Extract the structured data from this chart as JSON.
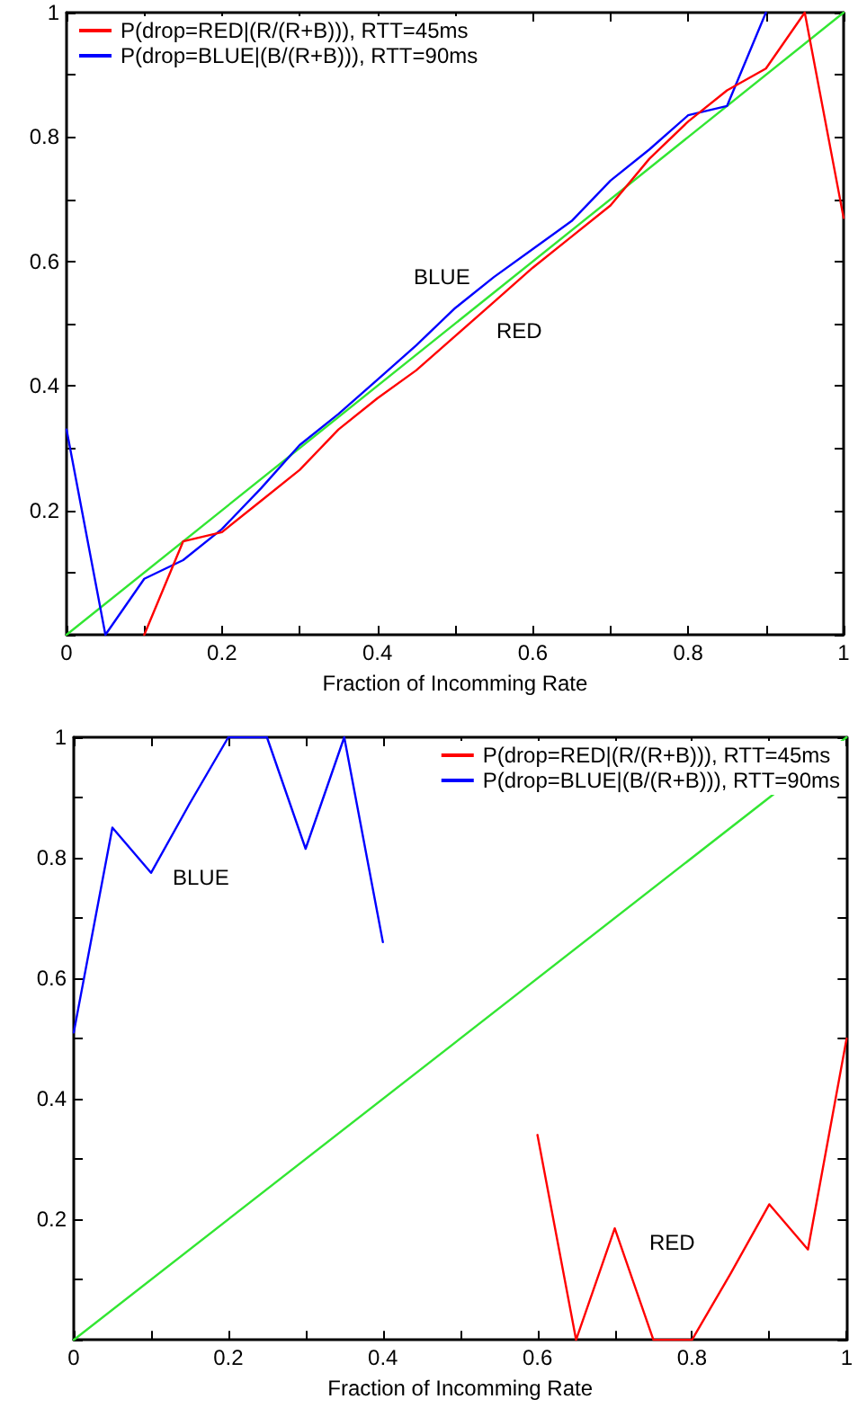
{
  "chart_data": [
    {
      "type": "line",
      "xlabel": "Fraction of Incomming Rate",
      "xlim": [
        0,
        1
      ],
      "ylim": [
        0,
        1
      ],
      "xticks": [
        0,
        {
          "value": 0.1,
          "label": null
        },
        0.2,
        {
          "value": 0.3,
          "label": null
        },
        0.4,
        {
          "value": 0.5,
          "label": null
        },
        0.6,
        {
          "value": 0.7,
          "label": null
        },
        0.8,
        {
          "value": 0.9,
          "label": null
        },
        1
      ],
      "yticks": [
        {
          "value": 0,
          "label": null
        },
        {
          "value": 0.1,
          "label": null
        },
        0.2,
        {
          "value": 0.3,
          "label": null
        },
        0.4,
        {
          "value": 0.5,
          "label": null
        },
        0.6,
        {
          "value": 0.7,
          "label": null
        },
        0.8,
        {
          "value": 0.9,
          "label": null
        },
        1
      ],
      "grid": false,
      "legend": "top left",
      "marker": "none",
      "line_style": "solid",
      "series": [
        {
          "name": "P(drop=RED|(R/(R+B))), RTT=45ms",
          "color": "#ff0000",
          "x": [
            0.1,
            0.15,
            0.2,
            0.25,
            0.3,
            0.35,
            0.4,
            0.45,
            0.5,
            0.55,
            0.6,
            0.65,
            0.7,
            0.75,
            0.8,
            0.85,
            0.9,
            0.95,
            1.0
          ],
          "values": [
            0,
            0.15,
            0.165,
            0.215,
            0.265,
            0.33,
            0.38,
            0.425,
            0.48,
            0.535,
            0.59,
            0.64,
            0.69,
            0.765,
            0.825,
            0.875,
            0.91,
            1.0,
            0.67
          ]
        },
        {
          "name": "P(drop=BLUE|(B/(R+B))), RTT=90ms",
          "color": "#0000ff",
          "x": [
            0,
            0.05,
            0.1,
            0.15,
            0.2,
            0.25,
            0.3,
            0.35,
            0.4,
            0.45,
            0.5,
            0.55,
            0.6,
            0.65,
            0.7,
            0.75,
            0.8,
            0.85,
            0.9
          ],
          "values": [
            0.33,
            0,
            0.09,
            0.12,
            0.17,
            0.235,
            0.305,
            0.355,
            0.41,
            0.465,
            0.525,
            0.575,
            0.62,
            0.665,
            0.73,
            0.78,
            0.835,
            0.85,
            1.0
          ]
        },
        {
          "color": "#33e633",
          "x": [
            0,
            1
          ],
          "values": [
            0,
            1
          ]
        }
      ],
      "annotations": [
        "BLUE",
        "RED"
      ]
    },
    {
      "type": "line",
      "xlabel": "Fraction of Incomming Rate",
      "xlim": [
        0,
        1
      ],
      "ylim": [
        0,
        1
      ],
      "xticks": [
        0,
        {
          "value": 0.1,
          "label": null
        },
        0.2,
        {
          "value": 0.3,
          "label": null
        },
        0.4,
        {
          "value": 0.5,
          "label": null
        },
        0.6,
        {
          "value": 0.7,
          "label": null
        },
        0.8,
        {
          "value": 0.9,
          "label": null
        },
        1
      ],
      "yticks": [
        {
          "value": 0,
          "label": null
        },
        {
          "value": 0.1,
          "label": null
        },
        0.2,
        {
          "value": 0.3,
          "label": null
        },
        0.4,
        {
          "value": 0.5,
          "label": null
        },
        0.6,
        {
          "value": 0.7,
          "label": null
        },
        0.8,
        {
          "value": 0.9,
          "label": null
        },
        1
      ],
      "grid": false,
      "legend": "top right",
      "marker": "none",
      "line_style": "solid",
      "series": [
        {
          "name": "P(drop=RED|(R/(R+B))), RTT=45ms",
          "color": "#ff0000",
          "x": [
            0.6,
            0.65,
            0.7,
            0.75,
            0.8,
            0.85,
            0.9,
            0.95,
            1.0
          ],
          "values": [
            0.34,
            0,
            0.185,
            0,
            0,
            0.11,
            0.225,
            0.15,
            0.5
          ]
        },
        {
          "name": "P(drop=BLUE|(B/(R+B))), RTT=90ms",
          "color": "#0000ff",
          "x": [
            0,
            0.05,
            0.1,
            0.15,
            0.2,
            0.25,
            0.3,
            0.35,
            0.4
          ],
          "values": [
            0.51,
            0.85,
            0.775,
            0.89,
            1.0,
            1.0,
            0.815,
            1.0,
            0.66
          ]
        },
        {
          "color": "#33e633",
          "x": [
            0,
            1
          ],
          "values": [
            0,
            1
          ]
        }
      ],
      "annotations": [
        "BLUE",
        "RED"
      ]
    }
  ]
}
